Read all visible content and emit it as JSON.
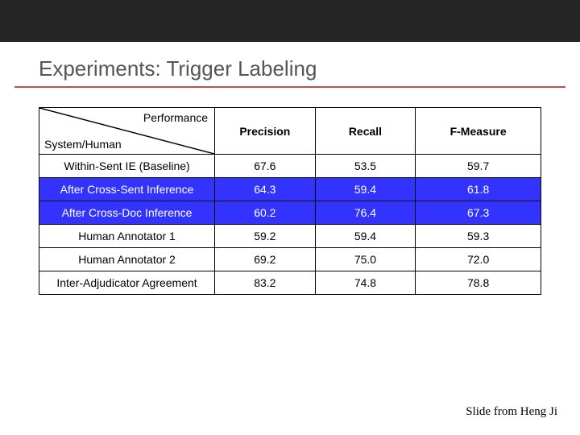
{
  "slide": {
    "title": "Experiments: Trigger Labeling",
    "credit": "Slide from Heng Ji"
  },
  "table": {
    "diagonal_top": "Performance",
    "diagonal_bottom": "System/Human",
    "columns": [
      "Precision",
      "Recall",
      "F-Measure"
    ],
    "rows": [
      {
        "label": "Within-Sent IE (Baseline)",
        "precision": "67.6",
        "recall": "53.5",
        "f": "59.7",
        "highlight": false
      },
      {
        "label": "After Cross-Sent Inference",
        "precision": "64.3",
        "recall": "59.4",
        "f": "61.8",
        "highlight": true
      },
      {
        "label": "After Cross-Doc Inference",
        "precision": "60.2",
        "recall": "76.4",
        "f": "67.3",
        "highlight": true
      },
      {
        "label": "Human Annotator 1",
        "precision": "59.2",
        "recall": "59.4",
        "f": "59.3",
        "highlight": false
      },
      {
        "label": "Human Annotator 2",
        "precision": "69.2",
        "recall": "75.0",
        "f": "72.0",
        "highlight": false
      },
      {
        "label": "Inter-Adjudicator Agreement",
        "precision": "83.2",
        "recall": "74.8",
        "f": "78.8",
        "highlight": false
      }
    ],
    "column_widths": [
      "210px",
      "120px",
      "120px",
      "150px"
    ],
    "highlight_bg": "#3333ff",
    "highlight_fg": "#ffffff"
  }
}
